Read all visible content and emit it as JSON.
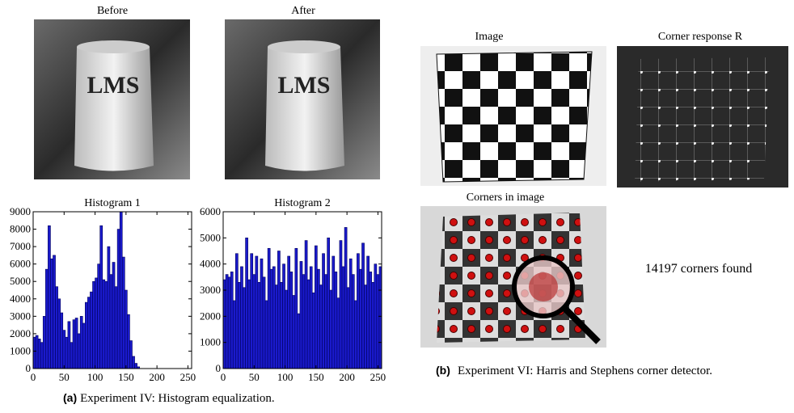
{
  "figure": {
    "before": "Before",
    "after": "After",
    "image": "Image",
    "corner_response": "Corner response R",
    "corners_in_image": "Corners in image",
    "corners_found": "14197 corners found",
    "caption_a": {
      "label": "(a)",
      "text": "Experiment IV: Histogram equalization."
    },
    "caption_b": {
      "label": "(b)",
      "text": "Experiment VI: Harris and Stephens corner detector."
    }
  },
  "chart_data": [
    {
      "type": "histogram",
      "title": "Histogram 1",
      "color": "#1a1acc",
      "bins": [
        0,
        4,
        8,
        12,
        16,
        20,
        24,
        28,
        32,
        36,
        40,
        44,
        48,
        52,
        56,
        60,
        64,
        68,
        72,
        76,
        80,
        84,
        88,
        92,
        96,
        100,
        104,
        108,
        112,
        116,
        120,
        124,
        128,
        132,
        136,
        140,
        144,
        148,
        152,
        156,
        160,
        164,
        168,
        172,
        176,
        180,
        184,
        188,
        192,
        196,
        200,
        204,
        208,
        212,
        216,
        220,
        224,
        228,
        232,
        236,
        240,
        244,
        248,
        252,
        256
      ],
      "values": [
        1800,
        1900,
        1700,
        1500,
        3000,
        5700,
        8200,
        6300,
        6500,
        4700,
        4000,
        3200,
        2200,
        1800,
        2700,
        1500,
        2800,
        2900,
        2000,
        3000,
        2600,
        3800,
        4100,
        4400,
        5000,
        5200,
        6000,
        8200,
        5100,
        5000,
        7000,
        5400,
        6100,
        4700,
        8000,
        9000,
        6400,
        4500,
        3100,
        1600,
        700,
        300,
        100,
        0,
        0,
        0,
        0,
        0,
        0,
        0,
        0,
        0,
        0,
        0,
        0,
        0,
        0,
        0,
        0,
        0,
        0,
        0,
        0,
        0
      ],
      "xlim": [
        0,
        256
      ],
      "xticks": [
        0,
        50,
        100,
        150,
        200,
        250
      ],
      "ylim": [
        0,
        9000
      ],
      "yticks": [
        0,
        1000,
        2000,
        3000,
        4000,
        5000,
        6000,
        7000,
        8000,
        9000
      ]
    },
    {
      "type": "histogram",
      "title": "Histogram 2",
      "color": "#1a1acc",
      "bins": [
        0,
        4,
        8,
        12,
        16,
        20,
        24,
        28,
        32,
        36,
        40,
        44,
        48,
        52,
        56,
        60,
        64,
        68,
        72,
        76,
        80,
        84,
        88,
        92,
        96,
        100,
        104,
        108,
        112,
        116,
        120,
        124,
        128,
        132,
        136,
        140,
        144,
        148,
        152,
        156,
        160,
        164,
        168,
        172,
        176,
        180,
        184,
        188,
        192,
        196,
        200,
        204,
        208,
        212,
        216,
        220,
        224,
        228,
        232,
        236,
        240,
        244,
        248,
        252,
        256
      ],
      "values": [
        3400,
        3600,
        3500,
        3700,
        2600,
        4400,
        3300,
        3900,
        3100,
        5000,
        3400,
        4400,
        3600,
        4300,
        3300,
        4200,
        3500,
        2600,
        4600,
        3800,
        3900,
        3200,
        4500,
        3300,
        4000,
        3000,
        4300,
        3700,
        2800,
        4600,
        2100,
        4100,
        3600,
        4900,
        3400,
        3900,
        2900,
        4700,
        3800,
        3200,
        4400,
        3600,
        5000,
        3000,
        4300,
        3700,
        2700,
        4900,
        3900,
        5400,
        3100,
        4200,
        3600,
        2600,
        4400,
        3800,
        4800,
        3200,
        4300,
        3700,
        3300,
        4000,
        3600,
        3900
      ],
      "xlim": [
        0,
        256
      ],
      "xticks": [
        0,
        50,
        100,
        150,
        200,
        250
      ],
      "ylim": [
        0,
        6000
      ],
      "yticks": [
        0,
        1000,
        2000,
        3000,
        4000,
        5000,
        6000
      ]
    }
  ]
}
